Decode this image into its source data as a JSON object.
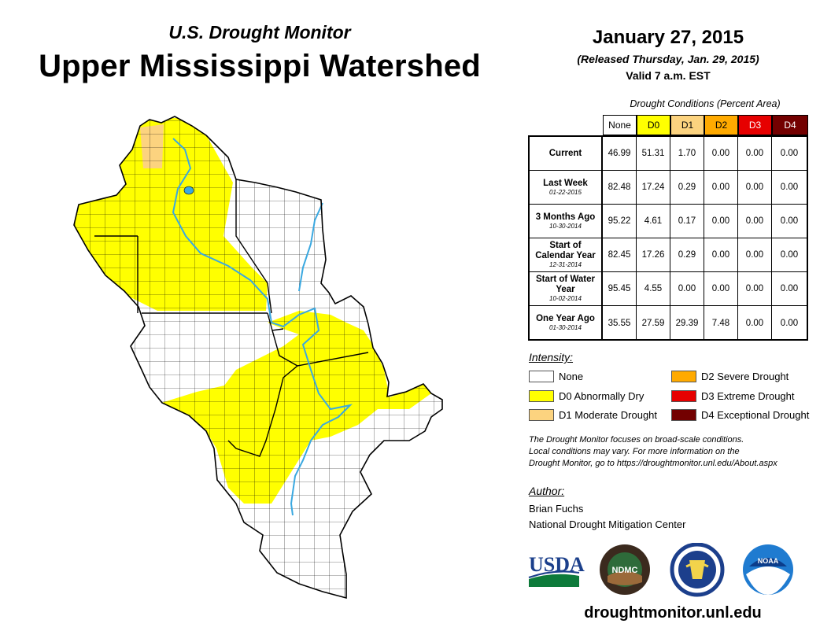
{
  "header": {
    "subtitle": "U.S. Drought Monitor",
    "title": "Upper Mississippi Watershed",
    "date": "January 27, 2015",
    "released": "(Released Thursday, Jan. 29, 2015)",
    "valid": "Valid 7 a.m. EST"
  },
  "table": {
    "caption": "Drought Conditions (Percent Area)",
    "columns": [
      "None",
      "D0",
      "D1",
      "D2",
      "D3",
      "D4"
    ],
    "column_colors": [
      "#ffffff",
      "#ffff00",
      "#fcd37f",
      "#ffaa00",
      "#e60000",
      "#730000"
    ],
    "rows": [
      {
        "label": "Current",
        "date": "",
        "values": [
          "46.99",
          "51.31",
          "1.70",
          "0.00",
          "0.00",
          "0.00"
        ]
      },
      {
        "label": "Last Week",
        "date": "01-22-2015",
        "values": [
          "82.48",
          "17.24",
          "0.29",
          "0.00",
          "0.00",
          "0.00"
        ]
      },
      {
        "label": "3 Months Ago",
        "date": "10-30-2014",
        "values": [
          "95.22",
          "4.61",
          "0.17",
          "0.00",
          "0.00",
          "0.00"
        ]
      },
      {
        "label": "Start of Calendar Year",
        "date": "12-31-2014",
        "values": [
          "82.45",
          "17.26",
          "0.29",
          "0.00",
          "0.00",
          "0.00"
        ]
      },
      {
        "label": "Start of Water Year",
        "date": "10-02-2014",
        "values": [
          "95.45",
          "4.55",
          "0.00",
          "0.00",
          "0.00",
          "0.00"
        ]
      },
      {
        "label": "One Year Ago",
        "date": "01-30-2014",
        "values": [
          "35.55",
          "27.59",
          "29.39",
          "7.48",
          "0.00",
          "0.00"
        ]
      }
    ]
  },
  "legend": {
    "title": "Intensity:",
    "items": [
      {
        "label": "None",
        "color": "#ffffff"
      },
      {
        "label": "D0 Abnormally Dry",
        "color": "#ffff00"
      },
      {
        "label": "D1 Moderate Drought",
        "color": "#fcd37f"
      },
      {
        "label": "D2 Severe Drought",
        "color": "#ffaa00"
      },
      {
        "label": "D3 Extreme Drought",
        "color": "#e60000"
      },
      {
        "label": "D4 Exceptional Drought",
        "color": "#730000"
      }
    ]
  },
  "note": {
    "line1": "The Drought Monitor focuses on broad-scale conditions.",
    "line2": "Local conditions may vary. For more information on the",
    "line3": "Drought Monitor, go to https://droughtmonitor.unl.edu/About.aspx"
  },
  "author": {
    "heading": "Author:",
    "name": "Brian Fuchs",
    "org": "National Drought Mitigation Center"
  },
  "logos": {
    "usda": "USDA",
    "ndmc": "NDMC",
    "noaa": "NOAA"
  },
  "footer": {
    "site": "droughtmonitor.unl.edu"
  },
  "map": {
    "colors": {
      "none": "#ffffff",
      "d0": "#ffff00",
      "d1": "#fcd37f",
      "water": "#3aa8e0",
      "border": "#000000"
    }
  }
}
